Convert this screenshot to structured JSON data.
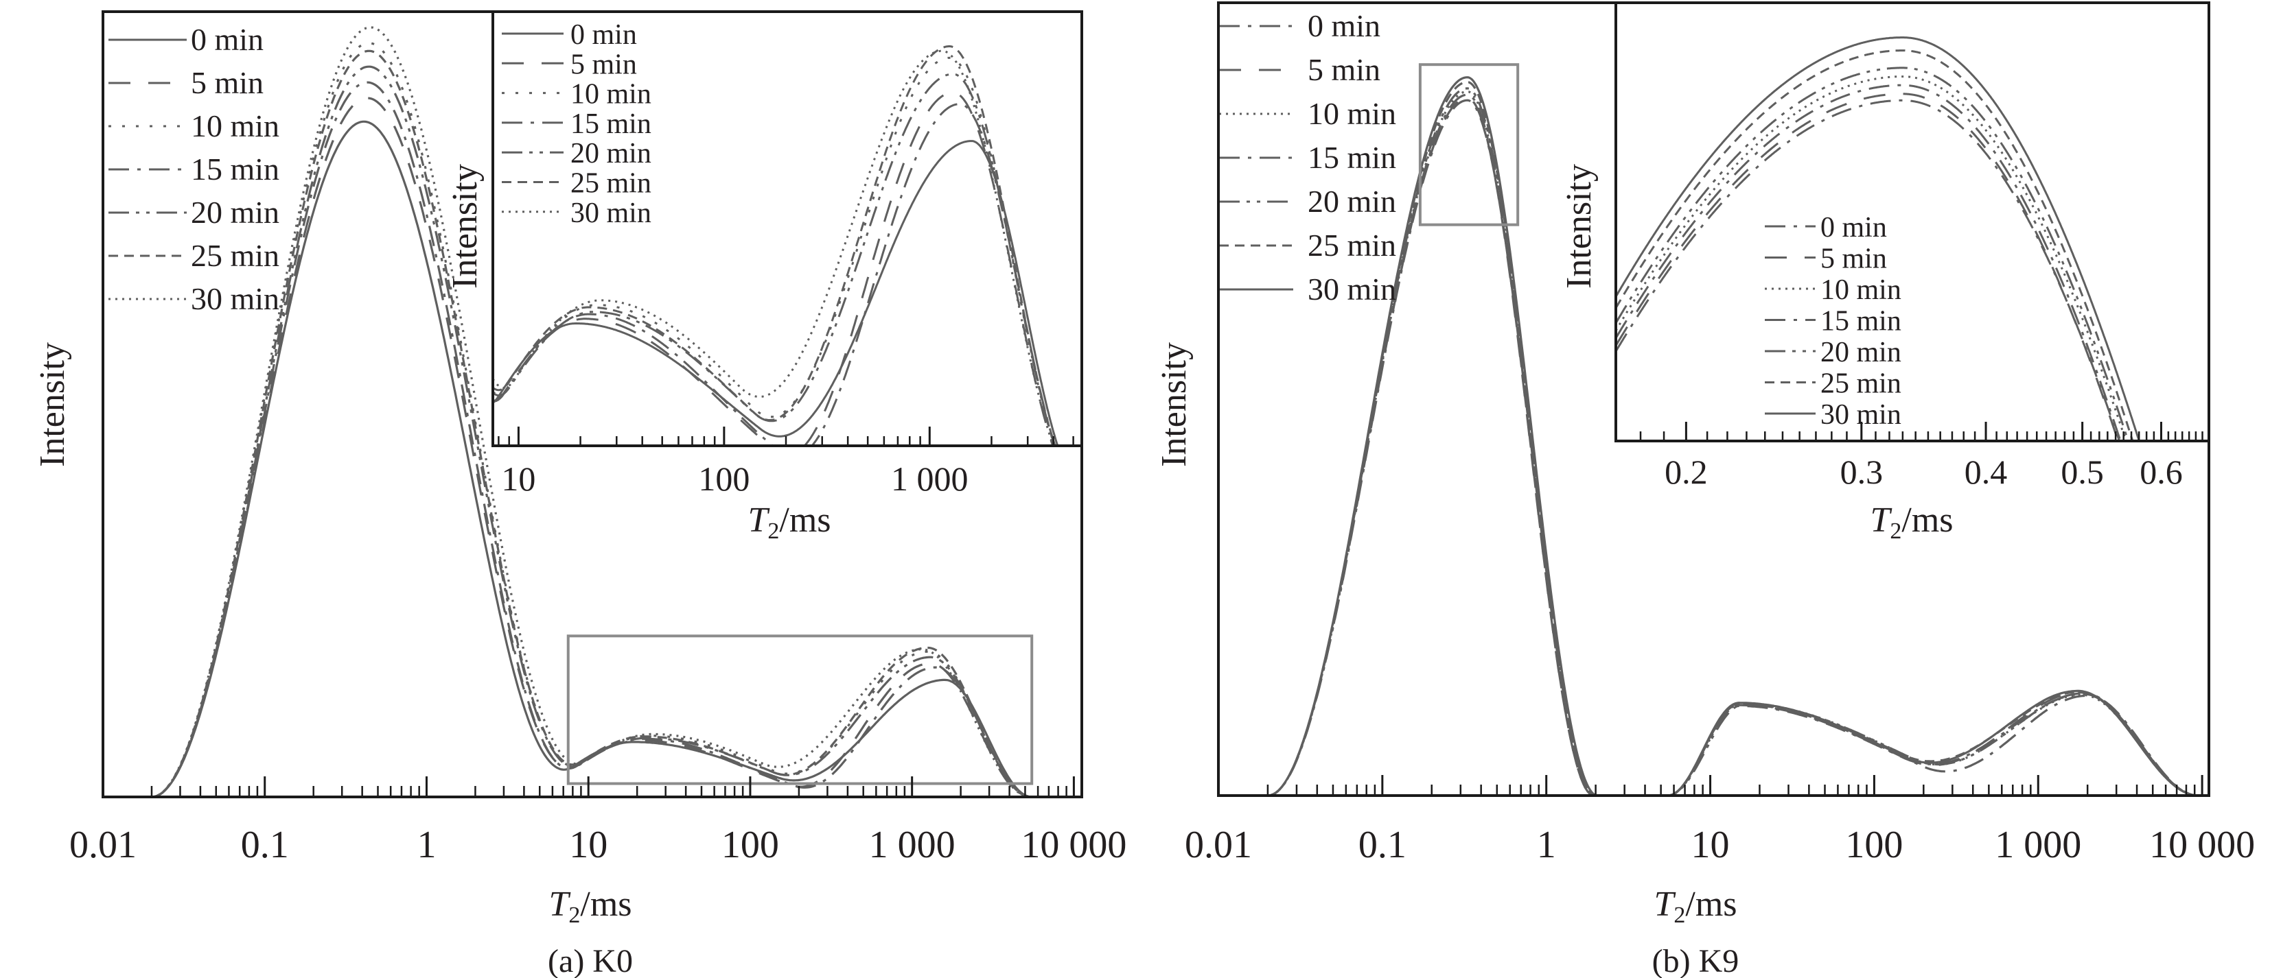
{
  "colors": {
    "series": "#5f5f5f",
    "axis": "#1a1a1a",
    "zoom_box": "#8c8c8c",
    "text": "#231f20"
  },
  "chart_data": [
    {
      "type": "line",
      "title": "(a) K0",
      "ylabel": "Intensity",
      "xlabel_symbol": "T",
      "xlabel_subscript": "2",
      "xlabel_unit": "/ms",
      "xscale": "log",
      "xlim": [
        0.01,
        11200
      ],
      "ylim": [
        0,
        1
      ],
      "grid": false,
      "xticks": [
        0.01,
        0.1,
        1,
        10,
        100,
        1000,
        10000
      ],
      "xtick_labels": [
        "0.01",
        "0.1",
        "1",
        "10",
        "100",
        "1 000",
        "10 000"
      ],
      "legend": "top-left",
      "peak_model": "sum of log-T2 raised-cosine peaks (lo, center, hi in ms; amp in intensity units)",
      "series": [
        {
          "name": "0 min",
          "style": "solid",
          "peaks": [
            {
              "lo": 0.02,
              "c": 0.41,
              "hi": 8,
              "amp": 0.86
            },
            {
              "lo": 3,
              "c": 19,
              "hi": 600,
              "amp": 0.07
            },
            {
              "lo": 150,
              "c": 1600,
              "hi": 5500,
              "amp": 0.149
            }
          ]
        },
        {
          "name": "5 min",
          "style": "long-dash",
          "peaks": [
            {
              "lo": 0.02,
              "c": 0.43,
              "hi": 8.5,
              "amp": 0.89
            },
            {
              "lo": 3,
              "c": 21,
              "hi": 450,
              "amp": 0.072
            },
            {
              "lo": 180,
              "c": 1300,
              "hi": 5300,
              "amp": 0.17
            }
          ]
        },
        {
          "name": "10 min",
          "style": "sparse-dot",
          "peaks": [
            {
              "lo": 0.02,
              "c": 0.44,
              "hi": 9,
              "amp": 0.96
            },
            {
              "lo": 3,
              "c": 24,
              "hi": 600,
              "amp": 0.078
            },
            {
              "lo": 140,
              "c": 1250,
              "hi": 5400,
              "amp": 0.185
            }
          ]
        },
        {
          "name": "15 min",
          "style": "dash-dot",
          "peaks": [
            {
              "lo": 0.02,
              "c": 0.43,
              "hi": 8.5,
              "amp": 0.91
            },
            {
              "lo": 3,
              "c": 22,
              "hi": 450,
              "amp": 0.074
            },
            {
              "lo": 190,
              "c": 1400,
              "hi": 5400,
              "amp": 0.165
            }
          ]
        },
        {
          "name": "20 min",
          "style": "dash-dot-dot",
          "peaks": [
            {
              "lo": 0.02,
              "c": 0.44,
              "hi": 9,
              "amp": 0.93
            },
            {
              "lo": 3,
              "c": 23,
              "hi": 600,
              "amp": 0.075
            },
            {
              "lo": 140,
              "c": 1300,
              "hi": 5400,
              "amp": 0.178
            }
          ]
        },
        {
          "name": "25 min",
          "style": "short-dash",
          "peaks": [
            {
              "lo": 0.02,
              "c": 0.44,
              "hi": 9,
              "amp": 0.95
            },
            {
              "lo": 3,
              "c": 22,
              "hi": 600,
              "amp": 0.077
            },
            {
              "lo": 140,
              "c": 1250,
              "hi": 5400,
              "amp": 0.19
            }
          ]
        },
        {
          "name": "30 min",
          "style": "fine-dot",
          "peaks": [
            {
              "lo": 0.02,
              "c": 0.45,
              "hi": 9.5,
              "amp": 0.98
            },
            {
              "lo": 3,
              "c": 25,
              "hi": 650,
              "amp": 0.08
            },
            {
              "lo": 120,
              "c": 1150,
              "hi": 5400,
              "amp": 0.188
            }
          ]
        }
      ],
      "inset": {
        "ylabel": "Intensity",
        "xlabel_symbol": "T",
        "xlabel_subscript": "2",
        "xlabel_unit": "/ms",
        "xscale": "log",
        "xlim": [
          7.5,
          5500
        ],
        "ylim": [
          0.017,
          0.205
        ],
        "xticks": [
          10,
          100,
          1000
        ],
        "xtick_labels": [
          "10",
          "100",
          "1 000"
        ],
        "minor_ticks": "log",
        "legend": "top-left"
      }
    },
    {
      "type": "line",
      "title": "(b) K9",
      "ylabel": "Intensity",
      "xlabel_symbol": "T",
      "xlabel_subscript": "2",
      "xlabel_unit": "/ms",
      "xscale": "log",
      "xlim": [
        0.01,
        11000
      ],
      "ylim": [
        0,
        1
      ],
      "grid": false,
      "xticks": [
        0.01,
        0.1,
        1,
        10,
        100,
        1000,
        10000
      ],
      "xtick_labels": [
        "0.01",
        "0.1",
        "1",
        "10",
        "100",
        "1 000",
        "10 000"
      ],
      "legend": "top-left",
      "peak_model": "sum of log-T2 raised-cosine peaks (lo, center, hi in ms; amp in intensity units)",
      "series": [
        {
          "name": "0 min",
          "style": "dash-dot",
          "peaks": [
            {
              "lo": 0.02,
              "c": 0.33,
              "hi": 2.0,
              "amp": 0.877
            },
            {
              "lo": 5.5,
              "c": 15,
              "hi": 1000,
              "amp": 0.113
            },
            {
              "lo": 150,
              "c": 1900,
              "hi": 9500,
              "amp": 0.128
            }
          ]
        },
        {
          "name": "5 min",
          "style": "long-dash",
          "peaks": [
            {
              "lo": 0.02,
              "c": 0.33,
              "hi": 1.95,
              "amp": 0.88
            },
            {
              "lo": 5.5,
              "c": 15,
              "hi": 1000,
              "amp": 0.115
            },
            {
              "lo": 160,
              "c": 1800,
              "hi": 9500,
              "amp": 0.13
            }
          ]
        },
        {
          "name": "10 min",
          "style": "fine-dot",
          "peaks": [
            {
              "lo": 0.02,
              "c": 0.33,
              "hi": 2.0,
              "amp": 0.888
            },
            {
              "lo": 5.5,
              "c": 15.5,
              "hi": 1100,
              "amp": 0.116
            },
            {
              "lo": 170,
              "c": 1850,
              "hi": 9500,
              "amp": 0.127
            }
          ]
        },
        {
          "name": "15 min",
          "style": "dash-dot",
          "peaks": [
            {
              "lo": 0.02,
              "c": 0.33,
              "hi": 1.95,
              "amp": 0.884
            },
            {
              "lo": 5.5,
              "c": 15,
              "hi": 1000,
              "amp": 0.114
            },
            {
              "lo": 200,
              "c": 2000,
              "hi": 9500,
              "amp": 0.126
            }
          ]
        },
        {
          "name": "20 min",
          "style": "dash-dot-dot",
          "peaks": [
            {
              "lo": 0.02,
              "c": 0.33,
              "hi": 2.0,
              "amp": 0.892
            },
            {
              "lo": 5.5,
              "c": 16,
              "hi": 1100,
              "amp": 0.115
            },
            {
              "lo": 170,
              "c": 1900,
              "hi": 9500,
              "amp": 0.129
            }
          ]
        },
        {
          "name": "25 min",
          "style": "short-dash",
          "peaks": [
            {
              "lo": 0.02,
              "c": 0.33,
              "hi": 2.0,
              "amp": 0.9
            },
            {
              "lo": 5.5,
              "c": 15,
              "hi": 1100,
              "amp": 0.116
            },
            {
              "lo": 150,
              "c": 1800,
              "hi": 9500,
              "amp": 0.131
            }
          ]
        },
        {
          "name": "30 min",
          "style": "solid",
          "peaks": [
            {
              "lo": 0.02,
              "c": 0.33,
              "hi": 2.05,
              "amp": 0.906
            },
            {
              "lo": 5.5,
              "c": 15,
              "hi": 1000,
              "amp": 0.117
            },
            {
              "lo": 150,
              "c": 1750,
              "hi": 9500,
              "amp": 0.132
            }
          ]
        }
      ],
      "inset": {
        "ylabel": "Intensity",
        "xlabel_symbol": "T",
        "xlabel_subscript": "2",
        "xlabel_unit": "/ms",
        "xscale": "log",
        "xlim": [
          0.17,
          0.67
        ],
        "ylim": [
          0.72,
          0.922
        ],
        "xticks": [
          0.2,
          0.3,
          0.4,
          0.5,
          0.6
        ],
        "xtick_labels": [
          "0.2",
          "0.3",
          "0.4",
          "0.5",
          "0.6"
        ],
        "minor_ticks": 0.01,
        "legend": "center"
      }
    }
  ]
}
